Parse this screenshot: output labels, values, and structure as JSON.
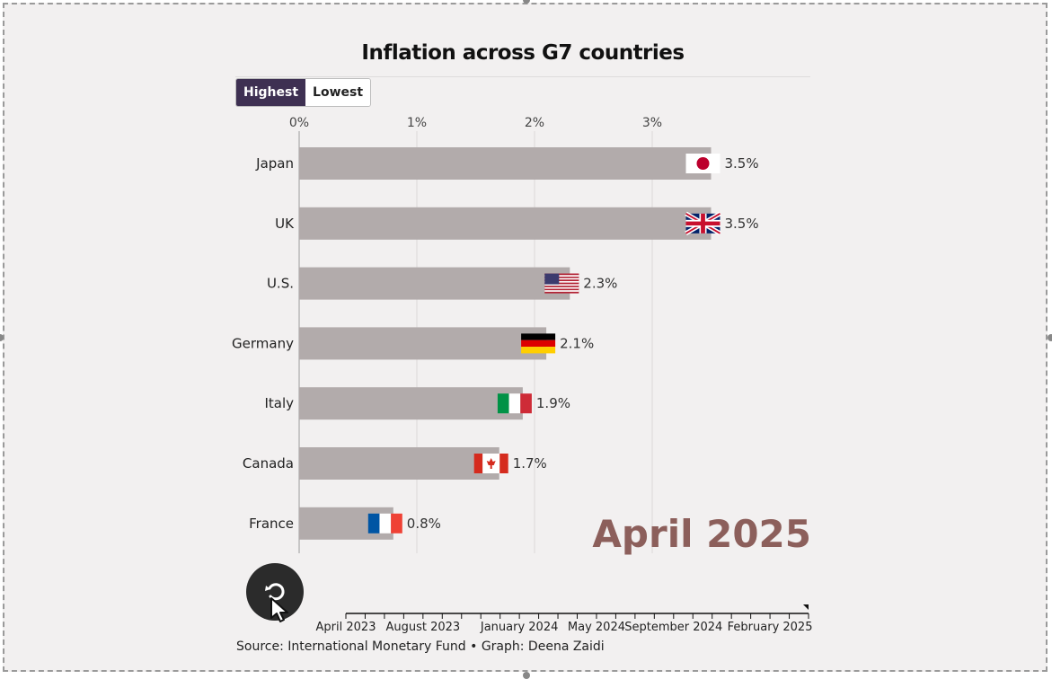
{
  "chart_data": {
    "type": "bar",
    "orientation": "horizontal",
    "title": "Inflation across G7 countries",
    "categories": [
      "Japan",
      "UK",
      "U.S.",
      "Germany",
      "Italy",
      "Canada",
      "France"
    ],
    "values": [
      3.5,
      3.5,
      2.3,
      2.1,
      1.9,
      1.7,
      0.8
    ],
    "value_labels": [
      "3.5%",
      "3.5%",
      "2.3%",
      "2.1%",
      "1.9%",
      "1.7%",
      "0.8%"
    ],
    "flags": [
      "japan-flag",
      "uk-flag",
      "us-flag",
      "germany-flag",
      "italy-flag",
      "canada-flag",
      "france-flag"
    ],
    "x_ticks": [
      0,
      1,
      2,
      3
    ],
    "x_tick_labels": [
      "0%",
      "1%",
      "2%",
      "3%"
    ],
    "xlim": [
      0,
      4.33
    ],
    "grid": true,
    "bar_color": "#b2abab",
    "period": "April 2025"
  },
  "toggle": {
    "highest_label": "Highest",
    "lowest_label": "Lowest"
  },
  "timeline": {
    "labels": [
      "April 2023",
      "August 2023",
      "January 2024",
      "May 2024",
      "September 2024",
      "February 2025"
    ],
    "start": "2023-04",
    "end": "2025-04",
    "current": "2025-04"
  },
  "source": "Source: International Monetary Fund • Graph: Deena Zaidi",
  "colors": {
    "toggle_active": "#3e3052",
    "period_text": "#8c5f5b",
    "replay_button": "#2b2b2b"
  }
}
